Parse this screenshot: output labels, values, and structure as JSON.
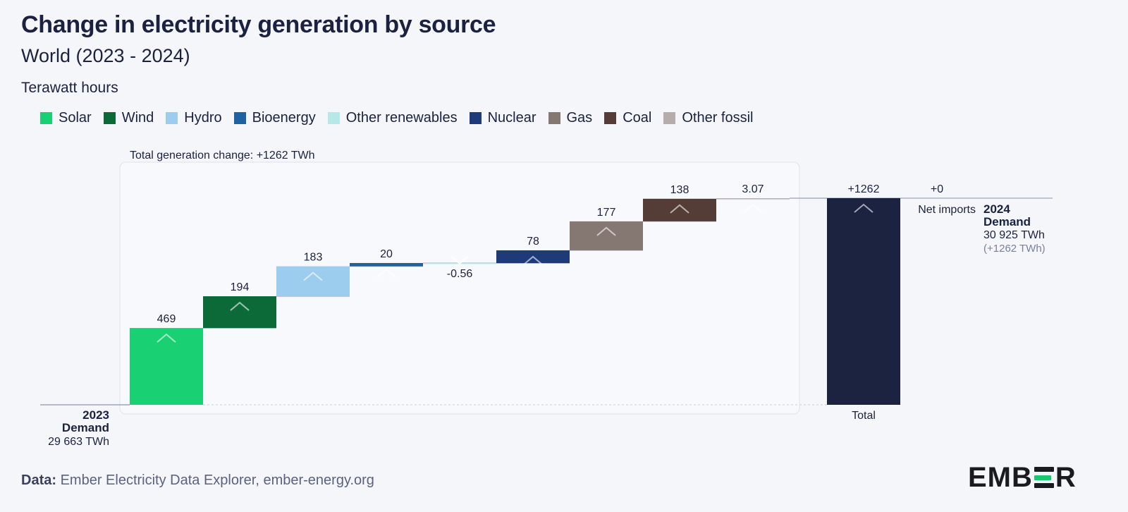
{
  "title": "Change in electricity generation by source",
  "subtitle": "World (2023 - 2024)",
  "unit_label": "Terawatt hours",
  "legend": [
    {
      "label": "Solar",
      "color": "#19d073"
    },
    {
      "label": "Wind",
      "color": "#0b6a37"
    },
    {
      "label": "Hydro",
      "color": "#9ccdee"
    },
    {
      "label": "Bioenergy",
      "color": "#1f62a2"
    },
    {
      "label": "Other renewables",
      "color": "#b5e8e6"
    },
    {
      "label": "Nuclear",
      "color": "#1f3a78"
    },
    {
      "label": "Gas",
      "color": "#857771"
    },
    {
      "label": "Coal",
      "color": "#533d36"
    },
    {
      "label": "Other fossil",
      "color": "#b5adab"
    }
  ],
  "chart_data": {
    "type": "waterfall",
    "unit": "TWh",
    "baseline_label": [
      "2023",
      "Demand"
    ],
    "baseline_value_text": "29 663 TWh",
    "annotation": "Total generation change: +1262 TWh",
    "steps": [
      {
        "name": "Solar",
        "value": 469,
        "label": "469",
        "color": "#19d073"
      },
      {
        "name": "Wind",
        "value": 194,
        "label": "194",
        "color": "#0b6a37"
      },
      {
        "name": "Hydro",
        "value": 183,
        "label": "183",
        "color": "#9ccdee"
      },
      {
        "name": "Bioenergy",
        "value": 20,
        "label": "20",
        "color": "#1f62a2"
      },
      {
        "name": "Other renewables",
        "value": -0.56,
        "label": "-0.56",
        "color": "#b5e8e6"
      },
      {
        "name": "Nuclear",
        "value": 78,
        "label": "78",
        "color": "#1f3a78"
      },
      {
        "name": "Gas",
        "value": 177,
        "label": "177",
        "color": "#857771"
      },
      {
        "name": "Coal",
        "value": 138,
        "label": "138",
        "color": "#533d36"
      },
      {
        "name": "Other fossil",
        "value": 3.07,
        "label": "3.07",
        "color": "#b5adab"
      }
    ],
    "total": {
      "value": 1262,
      "label": "+1262",
      "category": "Total",
      "color": "#1b2340"
    },
    "net_imports": {
      "value": 0,
      "label": "+0",
      "category": "Net imports"
    },
    "end_label": [
      "2024",
      "Demand"
    ],
    "end_value_text": "30 925 TWh",
    "end_change_text": "(+1262 TWh)"
  },
  "source": {
    "prefix": "Data:",
    "text": "Ember Electricity Data Explorer, ember-energy.org"
  },
  "logo": {
    "left": "EMB",
    "right": "R"
  }
}
